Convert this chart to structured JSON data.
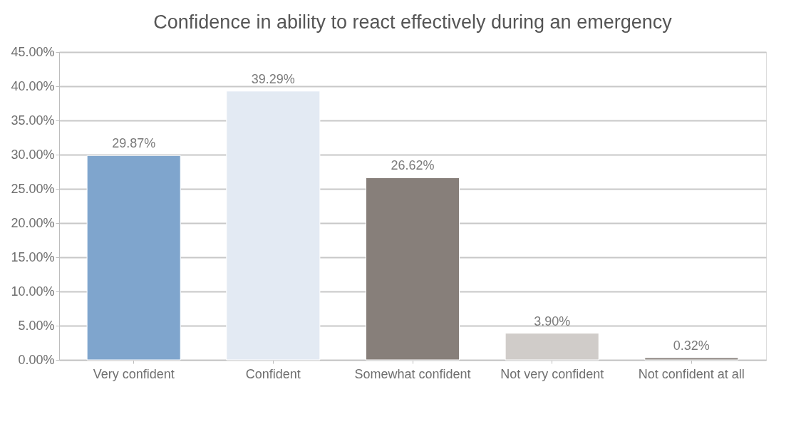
{
  "chart_data": {
    "type": "bar",
    "title": "Confidence in ability to react effectively during an emergency",
    "categories": [
      "Very confident",
      "Confident",
      "Somewhat confident",
      "Not very confident",
      "Not confident at all"
    ],
    "values": [
      29.87,
      39.29,
      26.62,
      3.9,
      0.32
    ],
    "colors": [
      "#7fa5cd",
      "#e3eaf3",
      "#877f7a",
      "#d0ccc9",
      "#8a837e"
    ],
    "value_labels": [
      "29.87%",
      "39.29%",
      "26.62%",
      "3.90%",
      "0.32%"
    ],
    "ylim": [
      0,
      45
    ],
    "yticks": [
      {
        "value": 0,
        "label": "0.00%"
      },
      {
        "value": 5,
        "label": "5.00%"
      },
      {
        "value": 10,
        "label": "10.00%"
      },
      {
        "value": 15,
        "label": "15.00%"
      },
      {
        "value": 20,
        "label": "20.00%"
      },
      {
        "value": 25,
        "label": "25.00%"
      },
      {
        "value": 30,
        "label": "30.00%"
      },
      {
        "value": 35,
        "label": "35.00%"
      },
      {
        "value": 40,
        "label": "40.00%"
      },
      {
        "value": 45,
        "label": "45.00%"
      }
    ],
    "grid": "y",
    "legend": false
  }
}
